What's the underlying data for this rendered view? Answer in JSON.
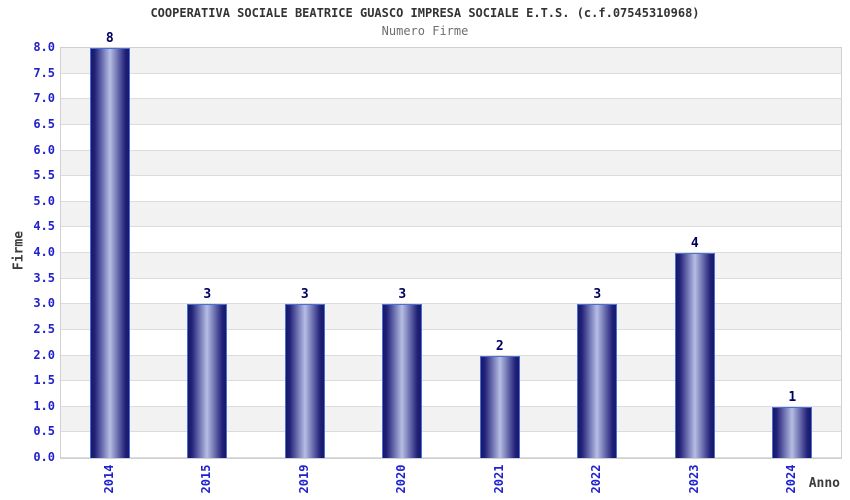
{
  "chart_data": {
    "type": "bar",
    "title": "COOPERATIVA SOCIALE BEATRICE GUASCO IMPRESA SOCIALE E.T.S. (c.f.07545310968)",
    "subtitle": "Numero Firme",
    "xlabel": "Anno",
    "ylabel": "Firme",
    "categories": [
      "2014",
      "2015",
      "2019",
      "2020",
      "2021",
      "2022",
      "2023",
      "2024"
    ],
    "values": [
      8,
      3,
      3,
      3,
      2,
      3,
      4,
      1
    ],
    "ylim": [
      0,
      8
    ],
    "ytick_step": 0.5,
    "grid": "horizontal-bands",
    "legend": "none",
    "colors": {
      "bar_edge_dark": "#181868",
      "bar_center_light": "#b6bee4",
      "bar_border": "#4a6fd6",
      "tick_label_blue": "#2121ce",
      "value_label_navy": "#000060",
      "band_gray": "#f2f2f2",
      "gridline": "#dcdcdc",
      "plot_border": "#d0d0d0",
      "title_color": "#333333",
      "subtitle_color": "#6e6e6e",
      "axis_title_color": "#3c3c3c"
    }
  }
}
